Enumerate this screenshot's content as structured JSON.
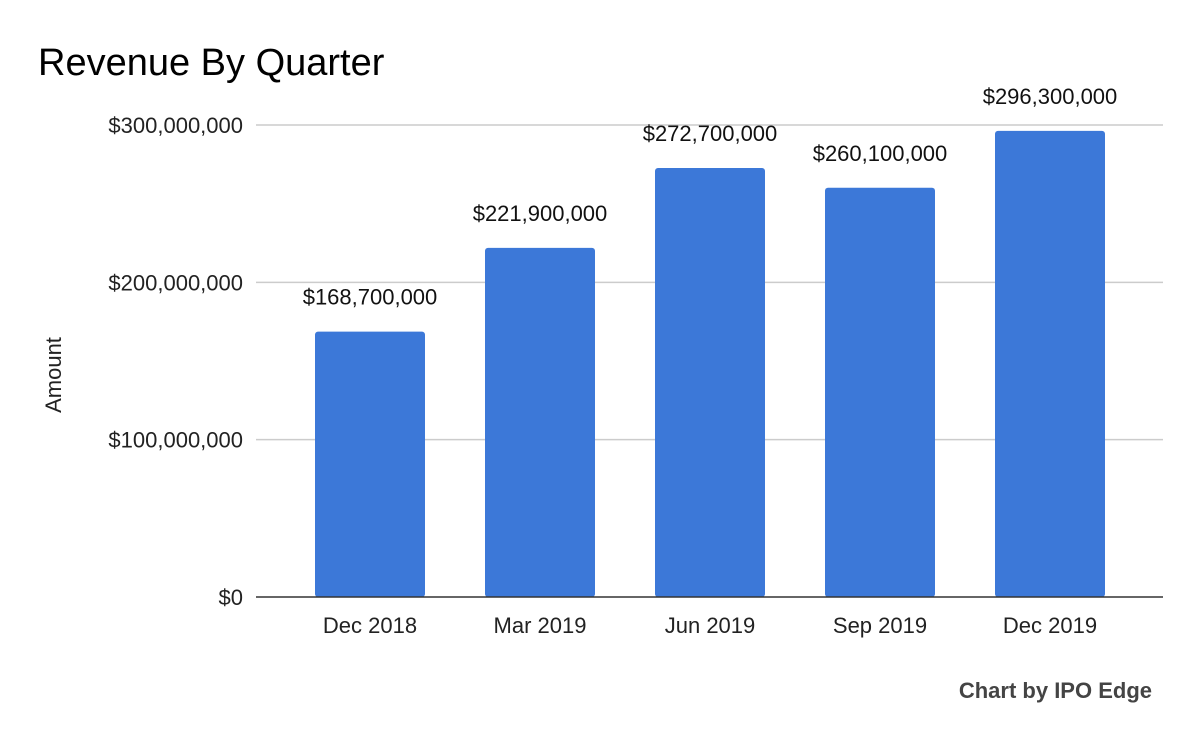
{
  "chart_data": {
    "type": "bar",
    "title": "Revenue By Quarter",
    "xlabel": "",
    "ylabel": "Amount",
    "categories": [
      "Dec 2018",
      "Mar 2019",
      "Jun 2019",
      "Sep 2019",
      "Dec 2019"
    ],
    "values": [
      168700000,
      221900000,
      272700000,
      260100000,
      296300000
    ],
    "data_labels": [
      "$168,700,000",
      "$221,900,000",
      "$272,700,000",
      "$260,100,000",
      "$296,300,000"
    ],
    "ylim": [
      0,
      300000000
    ],
    "y_ticks": [
      0,
      100000000,
      200000000,
      300000000
    ],
    "y_tick_labels": [
      "$0",
      "$100,000,000",
      "$200,000,000",
      "$300,000,000"
    ],
    "grid": true,
    "bar_color": "#3c78d8",
    "credit": "Chart by IPO Edge"
  }
}
